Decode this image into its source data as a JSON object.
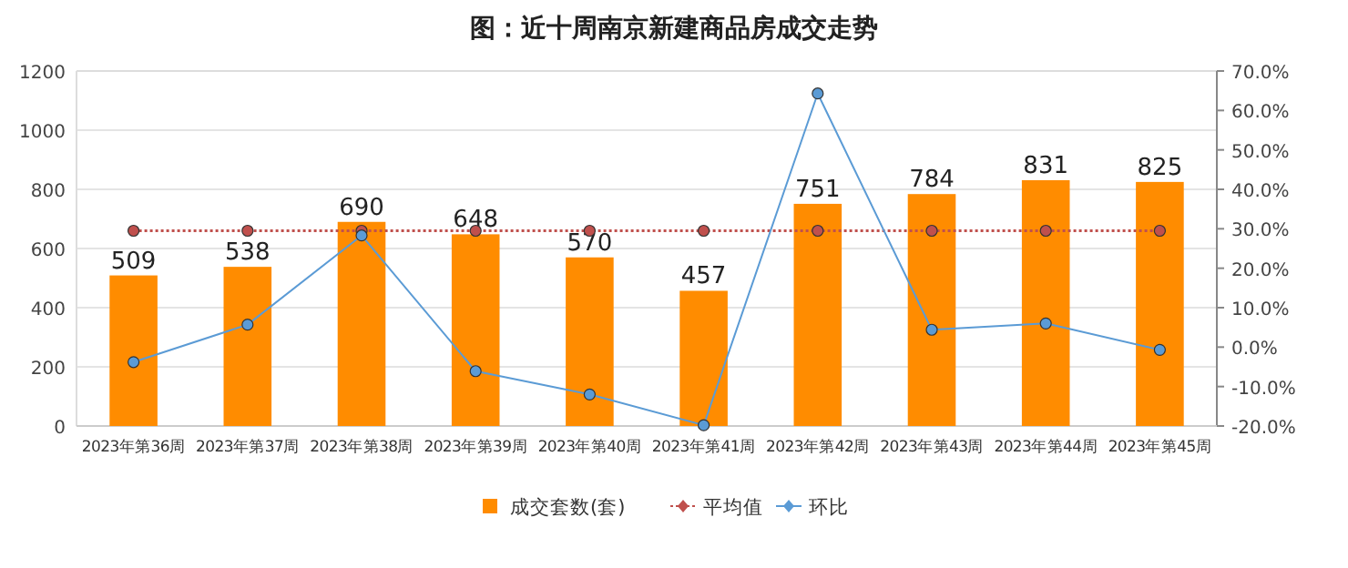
{
  "chart_data": {
    "type": "bar",
    "title": "图：近十周南京新建商品房成交走势",
    "categories": [
      "2023年第36周",
      "2023年第37周",
      "2023年第38周",
      "2023年第39周",
      "2023年第40周",
      "2023年第41周",
      "2023年第42周",
      "2023年第43周",
      "2023年第44周",
      "2023年第45周"
    ],
    "series": [
      {
        "name": "成交套数(套)",
        "color": "#ff8c00",
        "values": [
          509,
          538,
          690,
          648,
          570,
          457,
          751,
          784,
          831,
          825
        ],
        "value_labels": [
          "509",
          "538",
          "690",
          "648",
          "570",
          "457",
          "751",
          "784",
          "831",
          "825"
        ]
      },
      {
        "type": "line",
        "name": "平均值",
        "color": "#c0504d",
        "marker": "circle",
        "line_style": "dotted",
        "values": [
          660,
          660,
          660,
          660,
          660,
          660,
          660,
          660,
          660,
          660
        ]
      },
      {
        "type": "line",
        "name": "环比",
        "color": "#5b9bd5",
        "marker": "circle",
        "line_style": "solid",
        "axis": "y2",
        "values": [
          -3.8,
          5.7,
          28.3,
          -6.1,
          -12.0,
          -19.8,
          64.3,
          4.4,
          6.0,
          -0.7
        ]
      }
    ],
    "ylim": [
      0,
      1200
    ],
    "yticks": [
      0,
      200,
      400,
      600,
      800,
      1000,
      1200
    ],
    "y2lim": [
      -20,
      70
    ],
    "y2ticks": [
      {
        "value": -20,
        "label": "-20.0%"
      },
      {
        "value": -10,
        "label": "-10.0%"
      },
      {
        "value": 0,
        "label": "0.0%"
      },
      {
        "value": 10,
        "label": "10.0%"
      },
      {
        "value": 20,
        "label": "20.0%"
      },
      {
        "value": 30,
        "label": "30.0%"
      },
      {
        "value": 40,
        "label": "40.0%"
      },
      {
        "value": 50,
        "label": "50.0%"
      },
      {
        "value": 60,
        "label": "60.0%"
      },
      {
        "value": 70,
        "label": "70.0%"
      }
    ],
    "grid": "y",
    "legend": "bottom"
  }
}
